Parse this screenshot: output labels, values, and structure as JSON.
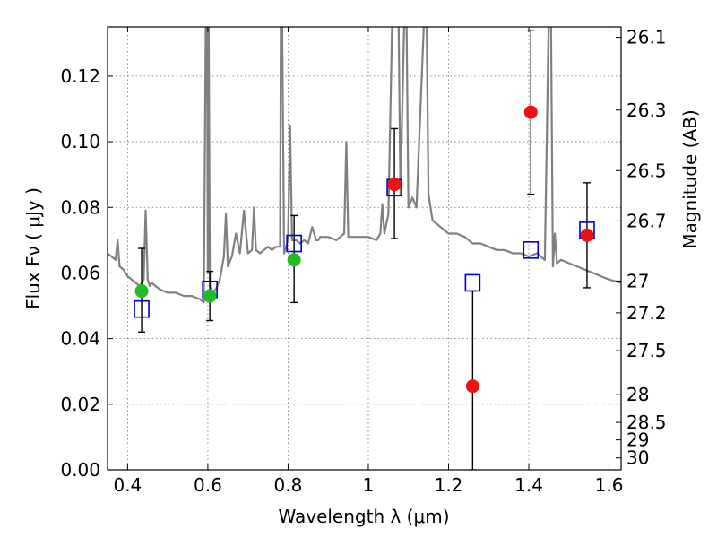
{
  "chart_data": {
    "type": "scatter",
    "title": "",
    "xlabel": "Wavelength  λ (μm)",
    "ylabel": "Flux  Fν  ( μJy )",
    "ylabel_right": "Magnitude (AB)",
    "xlim": [
      0.35,
      1.63
    ],
    "ylim": [
      0.0,
      0.135
    ],
    "grid": true,
    "x_ticks": [
      0.4,
      0.6,
      0.8,
      1.0,
      1.2,
      1.4,
      1.6
    ],
    "x_tick_labels": [
      "0.4",
      "0.6",
      "0.8",
      "1",
      "1.2",
      "1.4",
      "1.6"
    ],
    "y_ticks": [
      0.0,
      0.02,
      0.04,
      0.06,
      0.08,
      0.1,
      0.12
    ],
    "y_tick_labels": [
      "0.00",
      "0.02",
      "0.04",
      "0.06",
      "0.08",
      "0.10",
      "0.12"
    ],
    "right_ticks": [
      {
        "mag": 26.1,
        "label": "26.1"
      },
      {
        "mag": 26.3,
        "label": "26.3"
      },
      {
        "mag": 26.5,
        "label": "26.5"
      },
      {
        "mag": 26.7,
        "label": "26.7"
      },
      {
        "mag": 27.0,
        "label": "27"
      },
      {
        "mag": 27.2,
        "label": "27.2"
      },
      {
        "mag": 27.5,
        "label": "27.5"
      },
      {
        "mag": 28.0,
        "label": "28"
      },
      {
        "mag": 28.5,
        "label": "28.5"
      },
      {
        "mag": 29.0,
        "label": "29"
      },
      {
        "mag": 30.0,
        "label": "30"
      }
    ],
    "colors": {
      "model": "#808080",
      "green": "#22bb22",
      "red": "#ee1111",
      "box": "#0000cc",
      "errorbar": "#000000"
    },
    "series": [
      {
        "kind": "model_spectrum",
        "x": [
          0.35,
          0.37,
          0.375,
          0.38,
          0.39,
          0.4,
          0.41,
          0.42,
          0.43,
          0.44,
          0.445,
          0.45,
          0.455,
          0.46,
          0.47,
          0.48,
          0.5,
          0.52,
          0.54,
          0.56,
          0.58,
          0.59,
          0.595,
          0.598,
          0.6,
          0.602,
          0.605,
          0.61,
          0.62,
          0.63,
          0.64,
          0.645,
          0.65,
          0.66,
          0.67,
          0.68,
          0.69,
          0.7,
          0.71,
          0.715,
          0.72,
          0.73,
          0.74,
          0.75,
          0.76,
          0.77,
          0.78,
          0.782,
          0.785,
          0.79,
          0.8,
          0.805,
          0.81,
          0.82,
          0.83,
          0.84,
          0.85,
          0.86,
          0.87,
          0.875,
          0.88,
          0.89,
          0.9,
          0.92,
          0.94,
          0.945,
          0.95,
          0.96,
          0.98,
          1.0,
          1.02,
          1.03,
          1.035,
          1.04,
          1.05,
          1.06,
          1.07,
          1.075,
          1.08,
          1.09,
          1.095,
          1.1,
          1.11,
          1.12,
          1.14,
          1.145,
          1.15,
          1.16,
          1.18,
          1.2,
          1.22,
          1.24,
          1.26,
          1.28,
          1.3,
          1.32,
          1.34,
          1.36,
          1.38,
          1.4,
          1.42,
          1.44,
          1.45,
          1.455,
          1.46,
          1.465,
          1.47,
          1.48,
          1.5,
          1.52,
          1.54,
          1.56,
          1.58,
          1.6,
          1.63
        ],
        "y": [
          0.066,
          0.064,
          0.07,
          0.062,
          0.061,
          0.059,
          0.058,
          0.057,
          0.056,
          0.058,
          0.079,
          0.058,
          0.056,
          0.057,
          0.056,
          0.055,
          0.054,
          0.054,
          0.053,
          0.053,
          0.052,
          0.051,
          0.14,
          0.14,
          0.06,
          0.14,
          0.056,
          0.054,
          0.055,
          0.058,
          0.065,
          0.078,
          0.062,
          0.065,
          0.072,
          0.066,
          0.079,
          0.066,
          0.067,
          0.08,
          0.067,
          0.066,
          0.067,
          0.068,
          0.067,
          0.068,
          0.068,
          0.14,
          0.14,
          0.066,
          0.07,
          0.105,
          0.07,
          0.07,
          0.069,
          0.07,
          0.069,
          0.074,
          0.07,
          0.07,
          0.071,
          0.071,
          0.071,
          0.07,
          0.072,
          0.1,
          0.071,
          0.071,
          0.071,
          0.071,
          0.07,
          0.072,
          0.081,
          0.072,
          0.078,
          0.14,
          0.14,
          0.14,
          0.084,
          0.14,
          0.14,
          0.08,
          0.083,
          0.08,
          0.14,
          0.14,
          0.084,
          0.076,
          0.074,
          0.072,
          0.072,
          0.071,
          0.069,
          0.069,
          0.068,
          0.067,
          0.067,
          0.066,
          0.066,
          0.065,
          0.066,
          0.064,
          0.14,
          0.14,
          0.062,
          0.072,
          0.063,
          0.064,
          0.063,
          0.062,
          0.061,
          0.06,
          0.059,
          0.058,
          0.057
        ]
      },
      {
        "kind": "model_points",
        "marker": "square",
        "x": [
          0.435,
          0.605,
          0.815,
          1.065,
          1.26,
          1.405,
          1.545
        ],
        "y": [
          0.049,
          0.055,
          0.069,
          0.086,
          0.057,
          0.067,
          0.073
        ]
      },
      {
        "kind": "observed_green",
        "marker": "circle",
        "x": [
          0.435,
          0.605,
          0.815
        ],
        "y": [
          0.0545,
          0.053,
          0.064
        ],
        "err_low": [
          0.042,
          0.0455,
          0.051
        ],
        "err_high": [
          0.0675,
          0.0605,
          0.0775
        ]
      },
      {
        "kind": "observed_red",
        "marker": "circle",
        "x": [
          1.065,
          1.26,
          1.405,
          1.545
        ],
        "y": [
          0.087,
          0.0255,
          0.109,
          0.0715
        ],
        "err_low": [
          0.0705,
          0.0,
          0.084,
          0.0555
        ],
        "err_high": [
          0.104,
          0.0545,
          0.134,
          0.0875
        ]
      }
    ]
  }
}
